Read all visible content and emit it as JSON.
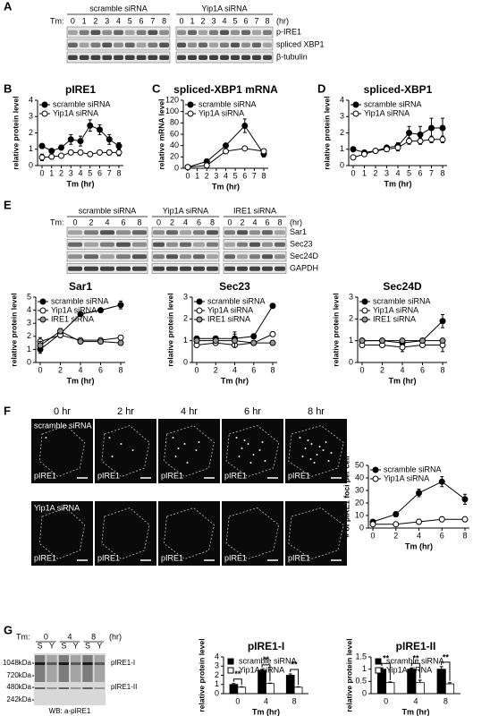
{
  "panel_labels": [
    "A",
    "B",
    "C",
    "D",
    "E",
    "F",
    "G"
  ],
  "blot_a": {
    "groups": [
      "scramble siRNA",
      "Yip1A siRNA"
    ],
    "tm_label": "Tm:",
    "times": [
      "0",
      "1",
      "2",
      "3",
      "4",
      "5",
      "6",
      "7",
      "8"
    ],
    "unit": "(hr)",
    "rows": [
      "p-IRE1",
      "spliced XBP1",
      "β-tubulin"
    ]
  },
  "blot_e": {
    "groups": [
      "scramble siRNA",
      "Yip1A siRNA",
      "IRE1 siRNA"
    ],
    "tm_label": "Tm:",
    "times": [
      "0",
      "2",
      "4",
      "6",
      "8"
    ],
    "unit": "(hr)",
    "rows": [
      "Sar1",
      "Sec23",
      "Sec24D",
      "GAPDH"
    ]
  },
  "images_f": {
    "times": [
      "0 hr",
      "2 hr",
      "4 hr",
      "6 hr",
      "8 hr"
    ],
    "rows": [
      "scramble siRNA",
      "Yip1A siRNA"
    ],
    "stain": "pIRE1"
  },
  "gel_g": {
    "tm_label": "Tm:",
    "times": [
      "0",
      "4",
      "8"
    ],
    "unit": "(hr)",
    "lanes": [
      "S",
      "Y",
      "S",
      "Y",
      "S",
      "Y"
    ],
    "markers": [
      "1048kDa",
      "720kDa",
      "480kDa",
      "242kDa"
    ],
    "bands": [
      "pIRE1-I",
      "pIRE1-II"
    ],
    "caption": "WB: a-pIRE1"
  },
  "chart_data": [
    {
      "type": "line",
      "title": "pIRE1",
      "xlabel": "Tm (hr)",
      "ylabel": "relative protein level",
      "legend": "upper left",
      "x": [
        0,
        1,
        2,
        3,
        4,
        5,
        6,
        7,
        8
      ],
      "xlim": [
        0,
        8
      ],
      "xticks": [
        0,
        1,
        2,
        3,
        4,
        5,
        6,
        7,
        8
      ],
      "ylim": [
        0,
        4
      ],
      "yticks": [
        0,
        1,
        2,
        3,
        4
      ],
      "series": [
        {
          "name": "scramble siRNA",
          "color": "#000000",
          "values": [
            1.2,
            0.9,
            1.1,
            1.6,
            1.5,
            2.45,
            2.2,
            1.6,
            1.2
          ],
          "errors": [
            0.15,
            0.1,
            0.15,
            0.3,
            0.3,
            0.35,
            0.3,
            0.3,
            0.2
          ]
        },
        {
          "name": "Yip1A siRNA",
          "color": "#ffffff",
          "values": [
            0.5,
            0.55,
            0.6,
            0.8,
            0.8,
            0.7,
            0.8,
            0.8,
            0.8
          ],
          "errors": [
            0.2,
            0.15,
            0.1,
            0.1,
            0.1,
            0.1,
            0.1,
            0.15,
            0.2
          ]
        }
      ]
    },
    {
      "type": "line",
      "title": "spliced-XBP1 mRNA",
      "xlabel": "Tm (hr)",
      "ylabel": "relative mRNA level",
      "legend": "upper left",
      "x": [
        0,
        2,
        4,
        6,
        8
      ],
      "xlim": [
        0,
        8
      ],
      "xticks": [
        0,
        1,
        2,
        3,
        4,
        5,
        6,
        7,
        8
      ],
      "ylim": [
        0,
        120
      ],
      "yticks": [
        0,
        20,
        40,
        60,
        80,
        100,
        120
      ],
      "series": [
        {
          "name": "scramble siRNA",
          "color": "#000000",
          "values": [
            2,
            12,
            40,
            75,
            25
          ],
          "errors": [
            1,
            4,
            2,
            12,
            5
          ]
        },
        {
          "name": "Yip1A siRNA",
          "color": "#ffffff",
          "values": [
            2,
            5,
            30,
            35,
            30
          ],
          "errors": [
            1,
            2,
            2,
            2,
            3
          ]
        }
      ]
    },
    {
      "type": "line",
      "title": "spliced-XBP1",
      "xlabel": "Tm (hr)",
      "ylabel": "relative protein level",
      "legend": "upper left",
      "x": [
        0,
        1,
        2,
        3,
        4,
        5,
        6,
        7,
        8
      ],
      "xlim": [
        0,
        8
      ],
      "xticks": [
        0,
        1,
        2,
        3,
        4,
        5,
        6,
        7,
        8
      ],
      "ylim": [
        0,
        4
      ],
      "yticks": [
        0,
        1,
        2,
        3,
        4
      ],
      "series": [
        {
          "name": "scramble siRNA",
          "color": "#000000",
          "values": [
            1,
            0.8,
            0.9,
            1.1,
            1.2,
            2.0,
            1.9,
            2.3,
            2.3
          ],
          "errors": [
            0.1,
            0.1,
            0.1,
            0.1,
            0.2,
            0.4,
            0.5,
            0.6,
            0.6
          ]
        },
        {
          "name": "Yip1A siRNA",
          "color": "#ffffff",
          "values": [
            0.5,
            0.7,
            0.9,
            1,
            1.1,
            1.5,
            1.5,
            1.6,
            1.6
          ],
          "errors": [
            0.1,
            0.1,
            0.1,
            0.1,
            0.2,
            0.2,
            0.2,
            0.2,
            0.2
          ]
        }
      ]
    },
    {
      "type": "line",
      "title": "Sar1",
      "xlabel": "Tm (hr)",
      "ylabel": "relative protein level",
      "legend": "upper left",
      "x": [
        0,
        2,
        4,
        6,
        8
      ],
      "xlim": [
        0,
        8
      ],
      "xticks": [
        0,
        2,
        4,
        6,
        8
      ],
      "ylim": [
        0,
        5
      ],
      "yticks": [
        0,
        1,
        2,
        3,
        4,
        5
      ],
      "series": [
        {
          "name": "scramble siRNA",
          "color": "#000000",
          "values": [
            1,
            2.2,
            3.7,
            4,
            4.4
          ],
          "errors": [
            0.3,
            0.2,
            0.1,
            0.1,
            0.3
          ]
        },
        {
          "name": "Yip1A siRNA",
          "color": "#ffffff",
          "values": [
            1.6,
            2.1,
            1.7,
            1.7,
            1.9
          ],
          "errors": [
            0.3,
            0.2,
            0.1,
            0.1,
            0.1
          ]
        },
        {
          "name": "IRE1 siRNA",
          "color": "#999999",
          "values": [
            1.3,
            2.4,
            1.6,
            1.6,
            1.5
          ],
          "errors": [
            0.3,
            0.2,
            0.1,
            0.1,
            0.1
          ]
        }
      ]
    },
    {
      "type": "line",
      "title": "Sec23",
      "xlabel": "Tm (hr)",
      "ylabel": "relative protein level",
      "legend": "upper left",
      "x": [
        0,
        2,
        4,
        6,
        8
      ],
      "xlim": [
        0,
        8
      ],
      "xticks": [
        0,
        2,
        4,
        6,
        8
      ],
      "ylim": [
        0,
        3
      ],
      "yticks": [
        0,
        1,
        2,
        3
      ],
      "series": [
        {
          "name": "scramble siRNA",
          "color": "#000000",
          "values": [
            1.1,
            1.1,
            1.1,
            1.2,
            2.6
          ],
          "errors": [
            0.1,
            0.1,
            0.3,
            0.1,
            0.1
          ]
        },
        {
          "name": "Yip1A siRNA",
          "color": "#ffffff",
          "values": [
            0.8,
            0.9,
            0.8,
            0.9,
            1.3
          ],
          "errors": [
            0.1,
            0.1,
            0.1,
            0.1,
            0.1
          ]
        },
        {
          "name": "IRE1 siRNA",
          "color": "#999999",
          "values": [
            1.0,
            1.0,
            1.0,
            0.9,
            0.9
          ],
          "errors": [
            0.1,
            0.1,
            0.3,
            0.1,
            0.1
          ]
        }
      ]
    },
    {
      "type": "line",
      "title": "Sec24D",
      "xlabel": "Tm (hr)",
      "ylabel": "relative protein level",
      "legend": "upper left",
      "x": [
        0,
        2,
        4,
        6,
        8
      ],
      "xlim": [
        0,
        8
      ],
      "xticks": [
        0,
        2,
        4,
        6,
        8
      ],
      "ylim": [
        0,
        3
      ],
      "yticks": [
        0,
        1,
        2,
        3
      ],
      "series": [
        {
          "name": "scramble siRNA",
          "color": "#000000",
          "values": [
            1,
            1,
            0.9,
            1,
            1.9
          ],
          "errors": [
            0.1,
            0.1,
            0.1,
            0.1,
            0.3
          ]
        },
        {
          "name": "Yip1A siRNA",
          "color": "#ffffff",
          "values": [
            0.8,
            0.8,
            0.7,
            0.8,
            0.8
          ],
          "errors": [
            0.1,
            0.1,
            0.2,
            0.1,
            0.3
          ]
        },
        {
          "name": "IRE1 siRNA",
          "color": "#999999",
          "values": [
            1,
            1,
            1,
            1,
            1
          ],
          "errors": [
            0.1,
            0.1,
            0.1,
            0.1,
            0.1
          ]
        }
      ]
    },
    {
      "type": "line",
      "title": "",
      "xlabel": "Tm (hr)",
      "ylabel": "# of pIRE1 foci per cell",
      "legend": "upper left",
      "x": [
        0,
        2,
        4,
        6,
        8
      ],
      "xlim": [
        0,
        8
      ],
      "xticks": [
        0,
        2,
        4,
        6,
        8
      ],
      "ylim": [
        0,
        50
      ],
      "yticks": [
        0,
        10,
        20,
        30,
        40,
        50
      ],
      "series": [
        {
          "name": "scramble siRNA",
          "color": "#000000",
          "values": [
            5,
            11,
            28,
            37,
            23
          ],
          "errors": [
            1,
            2,
            3,
            4,
            4
          ]
        },
        {
          "name": "Yip1A siRNA",
          "color": "#ffffff",
          "values": [
            3,
            3,
            5,
            7,
            7
          ],
          "errors": [
            1,
            1,
            2,
            2,
            2
          ]
        }
      ]
    },
    {
      "type": "bar",
      "title": "pIRE1-I",
      "xlabel": "Tm (hr)",
      "ylabel": "relative protein level",
      "legend": "upper left",
      "categories": [
        "0",
        "4",
        "8"
      ],
      "ylim": [
        0,
        4
      ],
      "yticks": [
        0,
        1,
        2,
        3,
        4
      ],
      "annotations": [
        "**",
        "**",
        "**"
      ],
      "series": [
        {
          "name": "scramble siRNA",
          "color": "#000000",
          "values": [
            1.0,
            2.55,
            2.0
          ],
          "errors": [
            0.1,
            0.1,
            0.15
          ]
        },
        {
          "name": "Yip1A siRNA",
          "color": "#ffffff",
          "values": [
            0.7,
            1.1,
            0.7
          ],
          "errors": [
            0.05,
            0.05,
            0.05
          ]
        }
      ]
    },
    {
      "type": "bar",
      "title": "pIRE1-II",
      "xlabel": "Tm (hr)",
      "ylabel": "relative protein level",
      "legend": "upper left",
      "categories": [
        "0",
        "4",
        "8"
      ],
      "ylim": [
        0,
        1.5
      ],
      "yticks": [
        0,
        0.5,
        1,
        1.5
      ],
      "annotations": [
        "**",
        "**",
        "**"
      ],
      "series": [
        {
          "name": "scramble siRNA",
          "color": "#000000",
          "values": [
            1.0,
            1.0,
            1.0
          ],
          "errors": [
            0.05,
            0.05,
            0.1
          ]
        },
        {
          "name": "Yip1A siRNA",
          "color": "#ffffff",
          "values": [
            0.45,
            0.45,
            0.4
          ],
          "errors": [
            0.03,
            0.1,
            0.05
          ]
        }
      ]
    }
  ]
}
